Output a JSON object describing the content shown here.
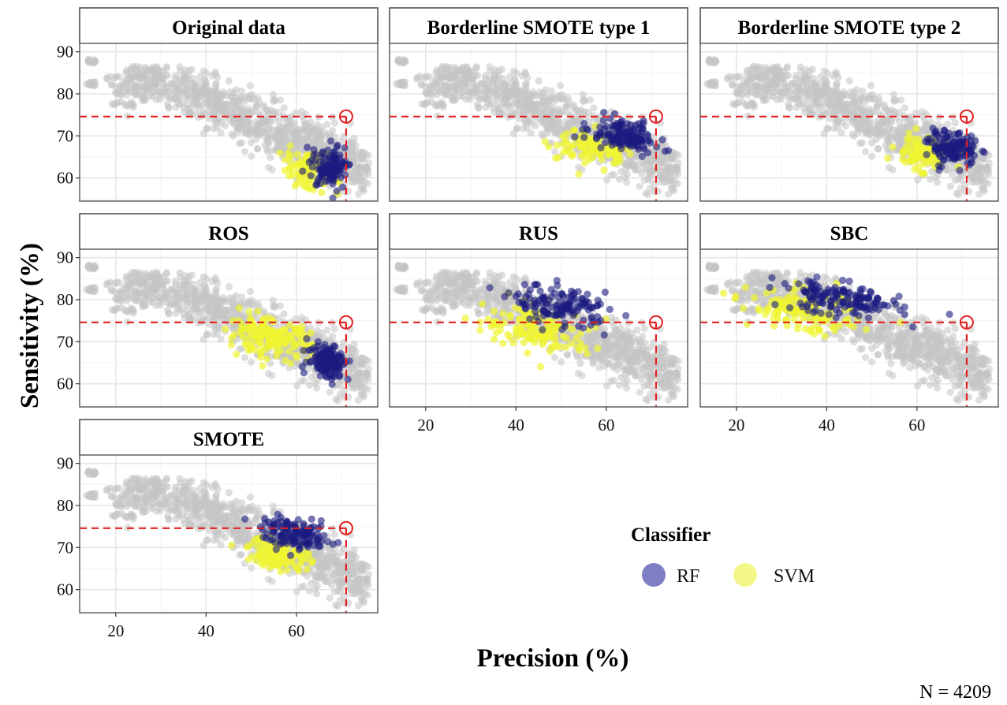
{
  "chart_data": {
    "type": "scatter",
    "xlabel": "Precision (%)",
    "ylabel": "Sensitivity (%)",
    "xlim": [
      12,
      78
    ],
    "ylim": [
      54.5,
      92
    ],
    "x_ticks": [
      20,
      40,
      60
    ],
    "y_ticks": [
      60,
      70,
      80,
      90
    ],
    "grid": true,
    "reference_point": {
      "x": 71,
      "y": 74.6
    },
    "annotation": "N = 4209",
    "legend": {
      "title": "Classifier",
      "placement": "bottom-right",
      "items": [
        {
          "label": "RF",
          "color": "#1a1a80"
        },
        {
          "label": "SVM",
          "color": "#f0f530"
        }
      ]
    },
    "background_color": "#c4c4c4",
    "panels": [
      {
        "title": "Original data",
        "series": [
          {
            "name": "RF",
            "cx": 67.5,
            "cy": 62.5,
            "sx": 2.6,
            "sy": 3.2,
            "n": 120
          },
          {
            "name": "SVM",
            "cx": 63,
            "cy": 62,
            "sx": 4,
            "sy": 3,
            "n": 110
          }
        ]
      },
      {
        "title": "Borderline SMOTE type 1",
        "series": [
          {
            "name": "RF",
            "cx": 64,
            "cy": 70,
            "sx": 5,
            "sy": 2.4,
            "n": 140
          },
          {
            "name": "SVM",
            "cx": 57,
            "cy": 67.5,
            "sx": 5,
            "sy": 2.5,
            "n": 110
          }
        ]
      },
      {
        "title": "Borderline SMOTE type 2",
        "series": [
          {
            "name": "RF",
            "cx": 68,
            "cy": 67,
            "sx": 3.5,
            "sy": 2.5,
            "n": 130
          },
          {
            "name": "SVM",
            "cx": 61,
            "cy": 66,
            "sx": 4,
            "sy": 2.5,
            "n": 110
          }
        ]
      },
      {
        "title": "ROS",
        "series": [
          {
            "name": "RF",
            "cx": 67,
            "cy": 65.5,
            "sx": 3,
            "sy": 2.8,
            "n": 130
          },
          {
            "name": "SVM",
            "cx": 54,
            "cy": 71,
            "sx": 6,
            "sy": 2.8,
            "n": 160
          }
        ]
      },
      {
        "title": "RUS",
        "series": [
          {
            "name": "RF",
            "cx": 50,
            "cy": 78.5,
            "sx": 7,
            "sy": 3,
            "n": 140
          },
          {
            "name": "SVM",
            "cx": 45,
            "cy": 73,
            "sx": 8,
            "sy": 3.5,
            "n": 140
          }
        ]
      },
      {
        "title": "SBC",
        "series": [
          {
            "name": "RF",
            "cx": 43,
            "cy": 80,
            "sx": 9,
            "sy": 2.6,
            "n": 150
          },
          {
            "name": "SVM",
            "cx": 35,
            "cy": 77,
            "sx": 8,
            "sy": 3.2,
            "n": 140
          }
        ]
      },
      {
        "title": "SMOTE",
        "series": [
          {
            "name": "RF",
            "cx": 60,
            "cy": 73,
            "sx": 5,
            "sy": 2.3,
            "n": 130
          },
          {
            "name": "SVM",
            "cx": 56,
            "cy": 68.5,
            "sx": 4.5,
            "sy": 2.5,
            "n": 120
          }
        ]
      }
    ]
  }
}
